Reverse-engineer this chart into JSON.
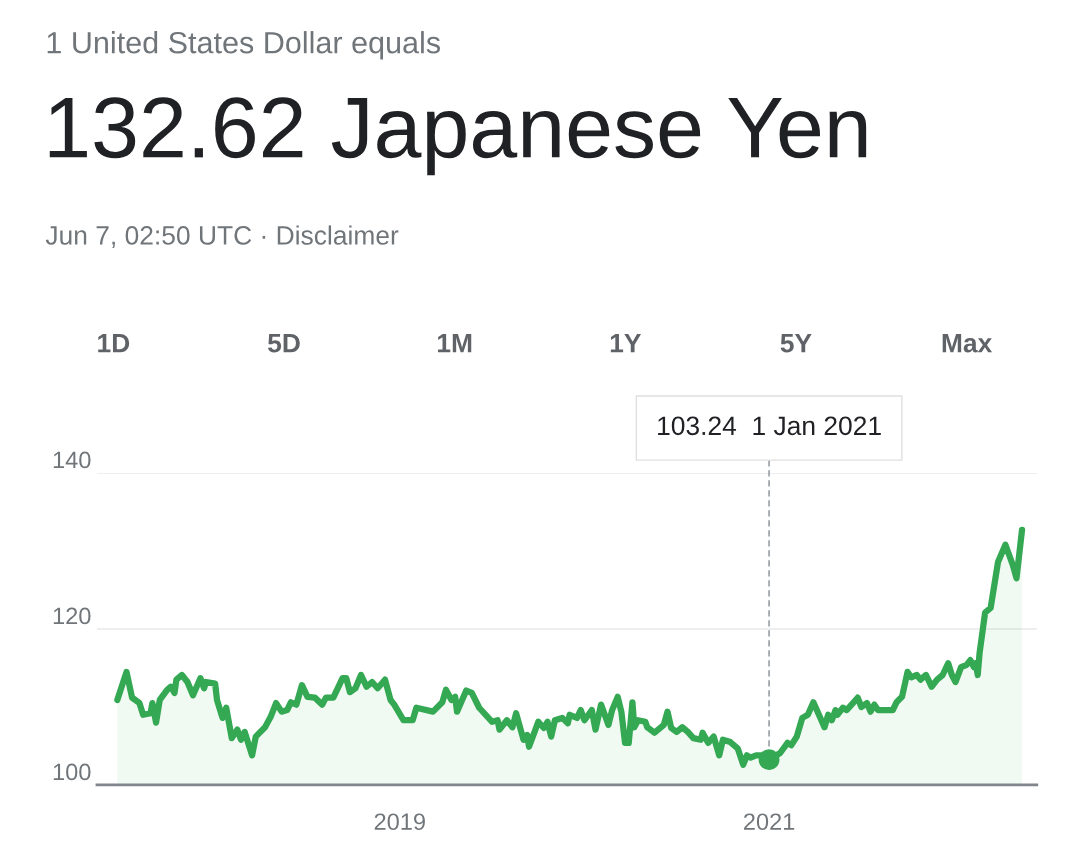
{
  "chart_data": {
    "type": "area",
    "title": "132.62 Japanese Yen",
    "subtitle": "1 United States Dollar equals",
    "annotations": [
      "Jun 7, 02:50 UTC · Disclaimer",
      "1D",
      "5D",
      "1M",
      "1Y",
      "5Y",
      "Max",
      {
        "text": "103.24  1 Jan 2021",
        "x": 2021.0,
        "y": 103.24
      }
    ],
    "series": [
      {
        "color": "#34a853",
        "x": [
          2017.47,
          2017.52,
          2017.55,
          2017.59,
          2017.61,
          2017.65,
          2017.66,
          2017.68,
          2017.7,
          2017.74,
          2017.76,
          2017.78,
          2017.79,
          2017.82,
          2017.85,
          2017.88,
          2017.92,
          2017.94,
          2017.95,
          2018.0,
          2018.01,
          2018.04,
          2018.06,
          2018.09,
          2018.12,
          2018.14,
          2018.16,
          2018.2,
          2018.22,
          2018.27,
          2018.3,
          2018.33,
          2018.36,
          2018.39,
          2018.41,
          2018.44,
          2018.47,
          2018.5,
          2018.54,
          2018.58,
          2018.6,
          2018.64,
          2018.69,
          2018.71,
          2018.73,
          2018.76,
          2018.79,
          2018.82,
          2018.85,
          2018.88,
          2018.92,
          2018.95,
          2018.97,
          2019.02,
          2019.07,
          2019.09,
          2019.18,
          2019.23,
          2019.25,
          2019.28,
          2019.3,
          2019.31,
          2019.36,
          2019.39,
          2019.43,
          2019.5,
          2019.53,
          2019.54,
          2019.58,
          2019.61,
          2019.63,
          2019.67,
          2019.69,
          2019.7,
          2019.75,
          2019.78,
          2019.8,
          2019.82,
          2019.84,
          2019.88,
          2019.91,
          2019.92,
          2019.96,
          2019.98,
          2020.0,
          2020.04,
          2020.06,
          2020.09,
          2020.13,
          2020.15,
          2020.18,
          2020.2,
          2020.22,
          2020.24,
          2020.26,
          2020.27,
          2020.29,
          2020.33,
          2020.34,
          2020.38,
          2020.43,
          2020.45,
          2020.47,
          2020.5,
          2020.53,
          2020.56,
          2020.59,
          2020.63,
          2020.64,
          2020.67,
          2020.7,
          2020.73,
          2020.75,
          2020.79,
          2020.83,
          2020.86,
          2020.88,
          2020.9,
          2020.93,
          2020.96,
          2021.0,
          2021.06,
          2021.1,
          2021.12,
          2021.15,
          2021.18,
          2021.21,
          2021.24,
          2021.27,
          2021.3,
          2021.32,
          2021.34,
          2021.36,
          2021.37,
          2021.4,
          2021.42,
          2021.47,
          2021.48,
          2021.5,
          2021.53,
          2021.55,
          2021.57,
          2021.59,
          2021.67,
          2021.69,
          2021.72,
          2021.75,
          2021.77,
          2021.8,
          2021.82,
          2021.85,
          2021.88,
          2021.91,
          2021.94,
          2021.97,
          2021.99,
          2022.01,
          2022.04,
          2022.07,
          2022.09,
          2022.11,
          2022.12,
          2022.13,
          2022.14,
          2022.17,
          2022.2,
          2022.24,
          2022.28,
          2022.32,
          2022.34,
          2022.37
        ],
        "values": [
          110.9,
          114.5,
          111.2,
          110.5,
          109.0,
          109.2,
          110.5,
          108.0,
          110.9,
          112.2,
          112.6,
          111.8,
          113.5,
          114.1,
          113.2,
          111.5,
          113.7,
          112.4,
          113.2,
          113.0,
          110.9,
          108.6,
          109.9,
          106.0,
          107.1,
          105.8,
          106.8,
          103.8,
          106.2,
          107.4,
          108.7,
          110.5,
          109.4,
          109.6,
          110.6,
          110.3,
          112.8,
          111.3,
          111.2,
          110.3,
          111.2,
          111.2,
          113.7,
          113.7,
          111.9,
          112.4,
          114.1,
          112.6,
          113.2,
          112.4,
          113.5,
          110.9,
          110.3,
          108.3,
          108.3,
          109.9,
          109.4,
          110.6,
          112.2,
          110.9,
          111.3,
          109.4,
          112.1,
          111.8,
          109.9,
          108.1,
          108.3,
          107.1,
          108.3,
          107.4,
          109.2,
          105.8,
          106.4,
          104.9,
          108.1,
          107.3,
          108.1,
          106.2,
          108.3,
          108.6,
          107.9,
          109.0,
          108.6,
          109.6,
          108.3,
          109.6,
          107.1,
          110.3,
          107.7,
          109.6,
          111.3,
          109.4,
          105.4,
          105.4,
          110.6,
          107.4,
          108.3,
          108.1,
          107.4,
          106.7,
          107.7,
          109.4,
          107.3,
          106.8,
          107.4,
          106.8,
          106.0,
          105.8,
          106.7,
          105.4,
          106.2,
          103.8,
          105.8,
          105.5,
          104.7,
          102.6,
          103.8,
          103.5,
          103.8,
          103.8,
          103.24,
          104.1,
          105.4,
          105.1,
          106.2,
          108.6,
          109.0,
          110.6,
          109.0,
          107.4,
          109.0,
          108.3,
          109.6,
          109.0,
          109.9,
          109.6,
          110.9,
          111.2,
          110.0,
          110.5,
          109.4,
          110.3,
          109.6,
          109.6,
          110.6,
          111.3,
          114.5,
          113.8,
          114.1,
          113.5,
          114.1,
          112.6,
          113.5,
          114.1,
          115.6,
          114.1,
          113.2,
          115.1,
          115.4,
          116.0,
          115.1,
          115.6,
          114.1,
          116.9,
          122.1,
          122.7,
          128.6,
          130.8,
          128.2,
          126.5,
          132.7
        ]
      }
    ],
    "xlim": [
      2017.36,
      2022.45
    ],
    "xticks": [
      2019,
      2021
    ],
    "ylim": [
      100,
      140
    ],
    "yticks": [
      100,
      120,
      140
    ],
    "grid": "y"
  }
}
